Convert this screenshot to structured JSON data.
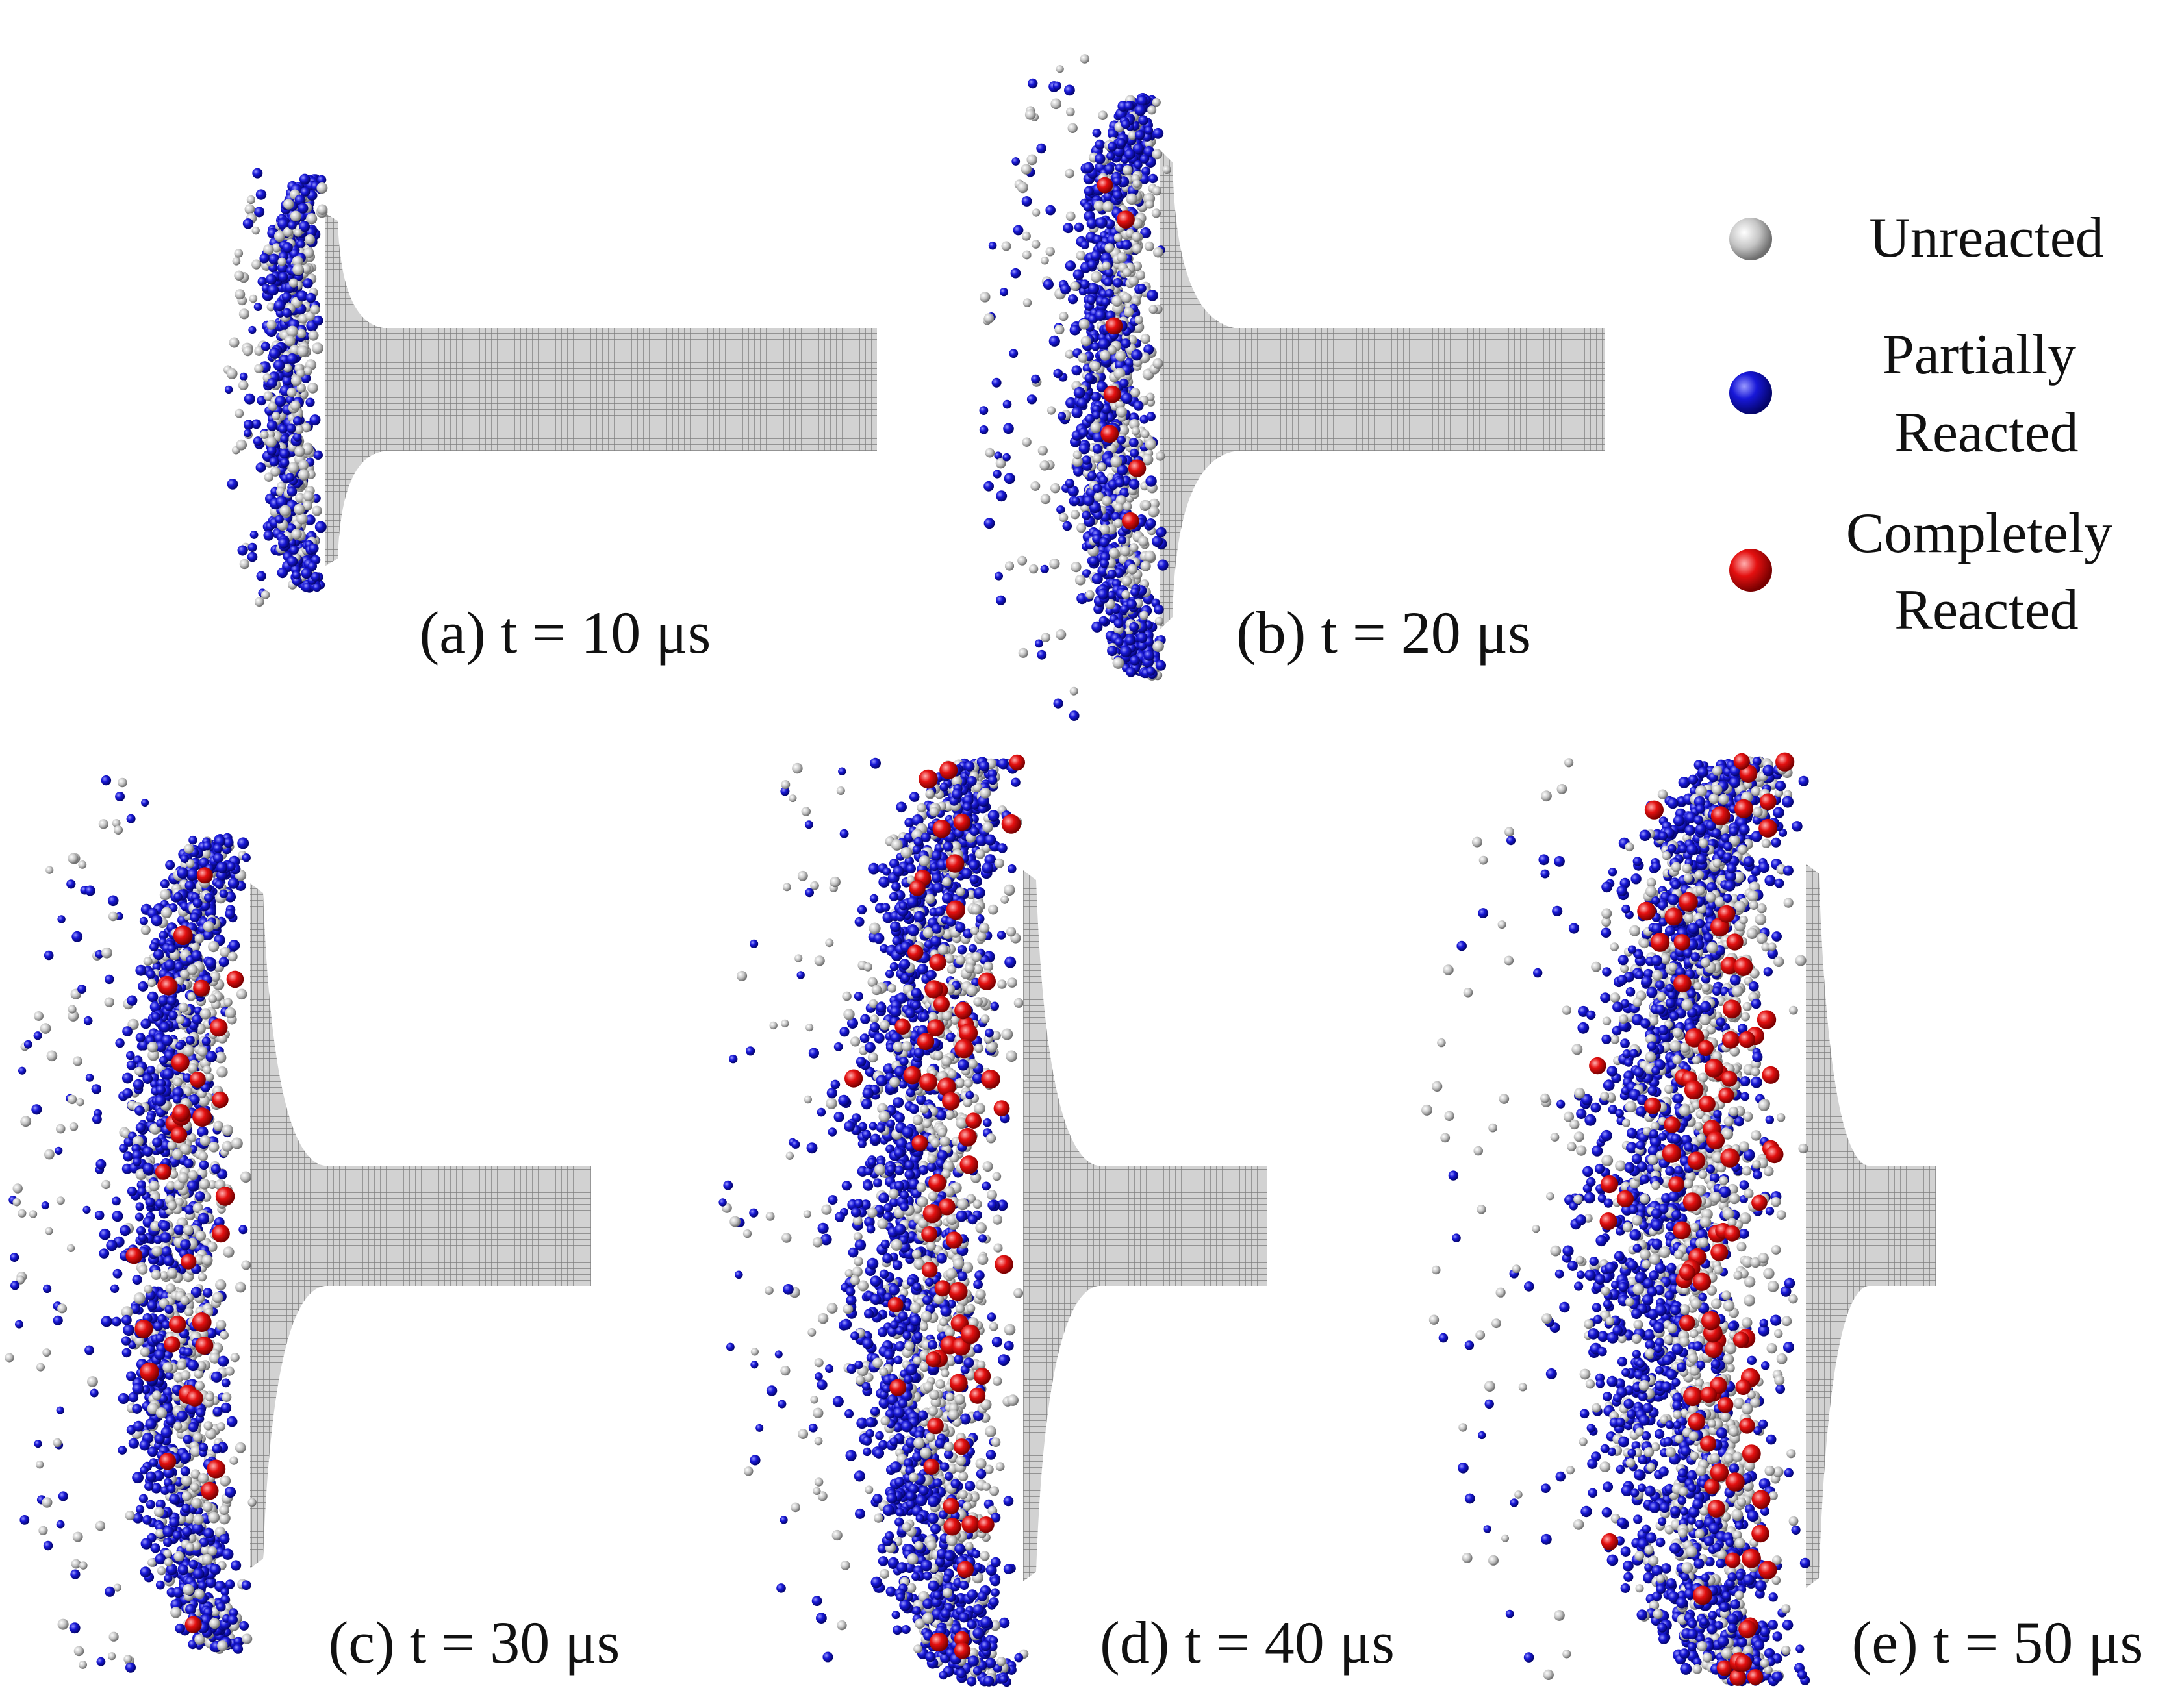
{
  "colors": {
    "unreacted": "#b8b8b8",
    "partially_reacted": "#1010c8",
    "completely_reacted": "#e01010",
    "rod_grid": "#8a8a8a"
  },
  "legend": {
    "items": [
      {
        "key": "unreacted",
        "lines": [
          "Unreacted"
        ]
      },
      {
        "key": "partially_reacted",
        "lines": [
          "Partially",
          "Reacted"
        ]
      },
      {
        "key": "completely_reacted",
        "lines": [
          "Completely",
          "Reacted"
        ]
      }
    ]
  },
  "panels": [
    {
      "id": "a",
      "caption": "(a) t = 10 μs"
    },
    {
      "id": "b",
      "caption": "(b) t = 20 μs"
    },
    {
      "id": "c",
      "caption": "(c) t = 30 μs"
    },
    {
      "id": "d",
      "caption": "(d) t = 40 μs"
    },
    {
      "id": "e",
      "caption": "(e) t = 50 μs"
    }
  ]
}
